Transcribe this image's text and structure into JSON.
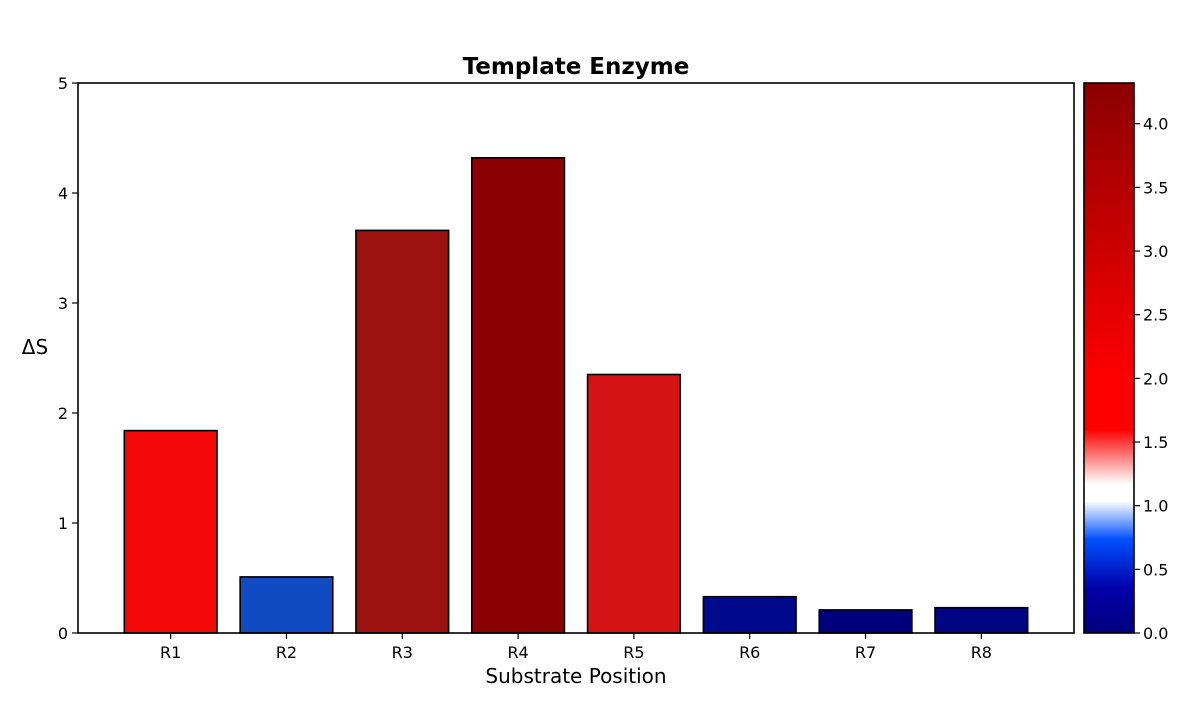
{
  "chart_data": {
    "type": "bar",
    "title": "Template Enzyme",
    "xlabel": "Substrate Position",
    "ylabel": "ΔS",
    "categories": [
      "R1",
      "R2",
      "R3",
      "R4",
      "R5",
      "R6",
      "R7",
      "R8"
    ],
    "values": [
      1.84,
      0.51,
      3.66,
      4.32,
      2.35,
      0.33,
      0.21,
      0.23
    ],
    "ylim": [
      0,
      5
    ],
    "yticks": [
      "0",
      "1",
      "2",
      "3",
      "4",
      "5"
    ],
    "grid": false,
    "legend": "none",
    "colorbar": {
      "range": [
        0,
        4.32
      ],
      "ticks": [
        "0.0",
        "0.5",
        "1.0",
        "1.5",
        "2.0",
        "2.5",
        "3.0",
        "3.5",
        "4.0"
      ],
      "colors": [
        "#00007f",
        "#0000a8",
        "#0050ff",
        "#ffffff",
        "#ff0000",
        "#8b0000"
      ]
    },
    "bar_colors": [
      "#f40707",
      "#114bc4",
      "#9d1111",
      "#8b0000",
      "#d41414",
      "#010a8c",
      "#00007f",
      "#000581"
    ],
    "bar_edge_color": "#000000"
  }
}
